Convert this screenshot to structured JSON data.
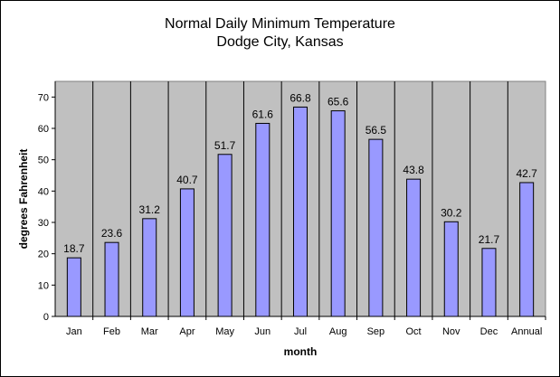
{
  "chart_data": {
    "type": "bar",
    "title": "Normal Daily Minimum Temperature",
    "subtitle": "Dodge City, Kansas",
    "xlabel": "month",
    "ylabel": "degrees Fahrenheit",
    "categories": [
      "Jan",
      "Feb",
      "Mar",
      "Apr",
      "May",
      "Jun",
      "Jul",
      "Aug",
      "Sep",
      "Oct",
      "Nov",
      "Dec",
      "Annual"
    ],
    "values": [
      18.7,
      23.6,
      31.2,
      40.7,
      51.7,
      61.6,
      66.8,
      65.6,
      56.5,
      43.8,
      30.2,
      21.7,
      42.7
    ],
    "data_labels": [
      "18.7",
      "23.6",
      "31.2",
      "40.7",
      "51.7",
      "61.6",
      "66.8",
      "65.6",
      "56.5",
      "43.8",
      "30.2",
      "21.7",
      "42.7"
    ],
    "yticks": [
      "0",
      "10",
      "20",
      "30",
      "40",
      "50",
      "60",
      "70"
    ],
    "ylim": [
      0,
      75
    ],
    "grid": "vertical category separators",
    "legend": "none",
    "colors": {
      "plot_background": "#c0c0c0",
      "bar_fill": "#9999ff",
      "bar_stroke": "#000000"
    }
  }
}
